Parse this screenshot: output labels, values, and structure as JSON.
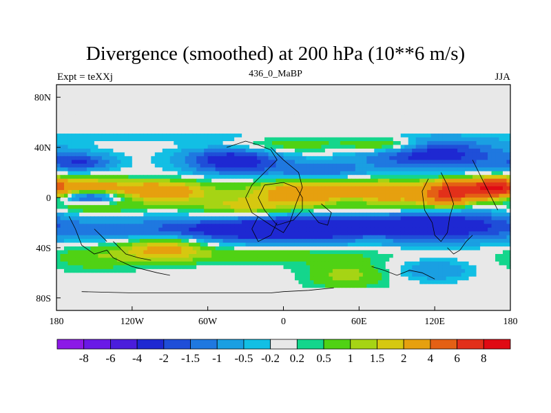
{
  "chart_data": {
    "type": "heatmap",
    "title": "Divergence (smoothed) at 200 hPa (10**6 m/s)",
    "subtitle": "436_0_MaBP",
    "left_string": "Expt = teXXj",
    "right_string": "JJA",
    "x_range": [
      -180,
      180
    ],
    "y_range": [
      -90,
      90
    ],
    "x_ticks": [
      {
        "value": -180,
        "label": "180"
      },
      {
        "value": -120,
        "label": "120W"
      },
      {
        "value": -60,
        "label": "60W"
      },
      {
        "value": 0,
        "label": "0"
      },
      {
        "value": 60,
        "label": "60E"
      },
      {
        "value": 120,
        "label": "120E"
      },
      {
        "value": 180,
        "label": "180"
      }
    ],
    "y_ticks": [
      {
        "value": 80,
        "label": "80N"
      },
      {
        "value": 40,
        "label": "40N"
      },
      {
        "value": 0,
        "label": "0"
      },
      {
        "value": -40,
        "label": "40S"
      },
      {
        "value": -80,
        "label": "80S"
      }
    ],
    "color_levels": [
      "-8",
      "-6",
      "-4",
      "-2",
      "-1.5",
      "-1",
      "-0.5",
      "-0.2",
      "0.2",
      "0.5",
      "1",
      "1.5",
      "2",
      "4",
      "6",
      "8"
    ],
    "colors": [
      "#8c19e6",
      "#6a19e6",
      "#4b1ddc",
      "#1e28d2",
      "#1f4ed8",
      "#1f78e0",
      "#1a9fe2",
      "#12bfe4",
      "#e8e8e8",
      "#14d68c",
      "#50d214",
      "#a6d414",
      "#d6c810",
      "#e6a00f",
      "#e46014",
      "#e2301a",
      "#e00a14"
    ],
    "no_data_color": "#e8e8e8",
    "missing_below": -73,
    "missing_above": 52,
    "field_features": [
      {
        "lon": 75,
        "lat": 3,
        "sx": 38,
        "sy": 9,
        "value": 2.5
      },
      {
        "lon": 10,
        "lat": 5,
        "sx": 30,
        "sy": 7,
        "value": 2.2
      },
      {
        "lon": -100,
        "lat": 5,
        "sx": 30,
        "sy": 6,
        "value": 3.0
      },
      {
        "lon": -160,
        "lat": 9,
        "sx": 22,
        "sy": 5,
        "value": 2.2
      },
      {
        "lon": 150,
        "lat": 7,
        "sx": 18,
        "sy": 5,
        "value": 5.0
      },
      {
        "lon": 130,
        "lat": 2,
        "sx": 14,
        "sy": 6,
        "value": 4.5
      },
      {
        "lon": 170,
        "lat": 8,
        "sx": 10,
        "sy": 5,
        "value": 5.5
      },
      {
        "lon": -150,
        "lat": -7,
        "sx": 25,
        "sy": 4,
        "value": 1.3
      },
      {
        "lon": -30,
        "lat": -7,
        "sx": 30,
        "sy": 5,
        "value": 1.6
      },
      {
        "lon": -40,
        "lat": -26,
        "sx": 80,
        "sy": 7,
        "value": -2.3
      },
      {
        "lon": 40,
        "lat": -24,
        "sx": 45,
        "sy": 7,
        "value": -2.6
      },
      {
        "lon": 130,
        "lat": -22,
        "sx": 40,
        "sy": 9,
        "value": -2.4
      },
      {
        "lon": -150,
        "lat": 0,
        "sx": 18,
        "sy": 4,
        "value": -2.6
      },
      {
        "lon": 55,
        "lat": -3,
        "sx": 12,
        "sy": 3,
        "value": -1.3
      },
      {
        "lon": -40,
        "lat": 30,
        "sx": 28,
        "sy": 8,
        "value": -2.6
      },
      {
        "lon": 120,
        "lat": 34,
        "sx": 40,
        "sy": 9,
        "value": -2.4
      },
      {
        "lon": -160,
        "lat": 28,
        "sx": 18,
        "sy": 5,
        "value": -1.8
      },
      {
        "lon": -95,
        "lat": -40,
        "sx": 22,
        "sy": 7,
        "value": 2.3
      },
      {
        "lon": 62,
        "lat": -28,
        "sx": 25,
        "sy": 5,
        "value": 1.1
      },
      {
        "lon": -20,
        "lat": -46,
        "sx": 70,
        "sy": 5,
        "value": 0.8
      },
      {
        "lon": -150,
        "lat": -48,
        "sx": 25,
        "sy": 8,
        "value": 0.8
      },
      {
        "lon": 50,
        "lat": -62,
        "sx": 22,
        "sy": 8,
        "value": 1.2
      },
      {
        "lon": 120,
        "lat": -58,
        "sx": 20,
        "sy": 6,
        "value": -1.0
      },
      {
        "lon": -5,
        "lat": 42,
        "sx": 40,
        "sy": 5,
        "value": 1.0
      },
      {
        "lon": 80,
        "lat": 42,
        "sx": 20,
        "sy": 4,
        "value": 1.6
      },
      {
        "lon": -80,
        "lat": 48,
        "sx": 60,
        "sy": 3,
        "value": -0.5
      },
      {
        "lon": 30,
        "lat": 20,
        "sx": 30,
        "sy": 6,
        "value": -1.5
      },
      {
        "lon": -30,
        "lat": 60,
        "sx": 10,
        "sy": 3,
        "value": -0.8
      }
    ]
  }
}
